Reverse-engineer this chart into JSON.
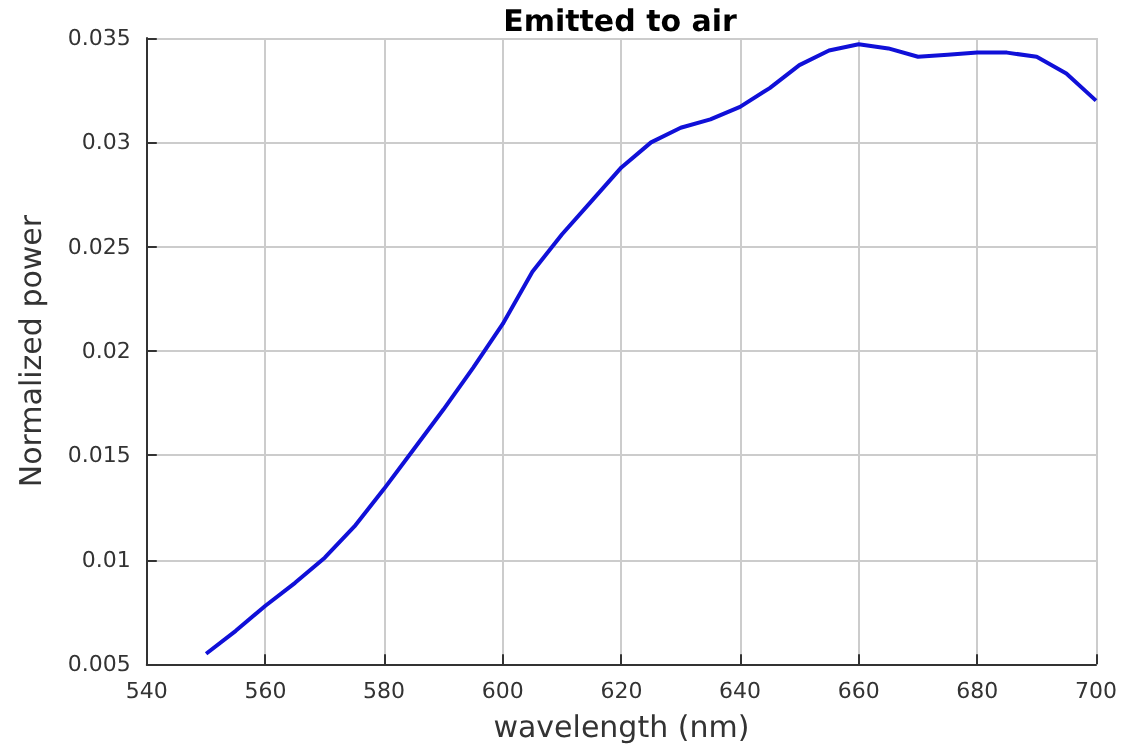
{
  "chart_data": {
    "type": "line",
    "title": "Emitted to air",
    "xlabel": "wavelength (nm)",
    "ylabel": "Normalized power",
    "series": [
      {
        "color": "#1010d8",
        "x": [
          550,
          555,
          560,
          565,
          570,
          575,
          580,
          585,
          590,
          595,
          600,
          605,
          610,
          615,
          620,
          625,
          630,
          635,
          640,
          645,
          650,
          655,
          660,
          665,
          670,
          675,
          680,
          685,
          690,
          695,
          700
        ],
        "values": [
          0.0055,
          0.0066,
          0.0078,
          0.0089,
          0.0101,
          0.0116,
          0.0134,
          0.0153,
          0.0172,
          0.0192,
          0.0213,
          0.0238,
          0.0256,
          0.0272,
          0.0288,
          0.03,
          0.0307,
          0.0311,
          0.0317,
          0.0326,
          0.0337,
          0.0344,
          0.0347,
          0.0345,
          0.0341,
          0.0342,
          0.0343,
          0.0343,
          0.0341,
          0.0333,
          0.032
        ]
      }
    ],
    "xlim": [
      540,
      700
    ],
    "xticks": [
      540,
      560,
      580,
      600,
      620,
      640,
      660,
      680,
      700
    ],
    "ylim": [
      0.005,
      0.035
    ],
    "yticks": [
      0.005,
      0.01,
      0.015,
      0.02,
      0.025,
      0.03,
      0.035
    ],
    "grid": true,
    "marker": "none",
    "line_style": "solid"
  }
}
